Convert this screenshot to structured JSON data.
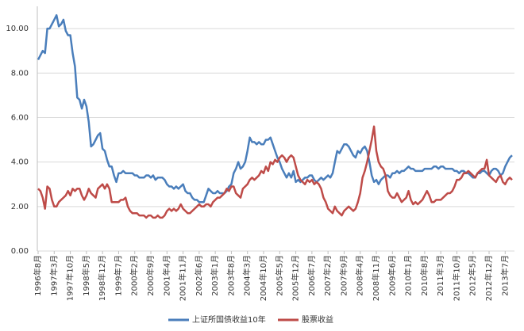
{
  "chart_data": {
    "type": "line",
    "categories": [
      "1996年8月",
      null,
      null,
      null,
      null,
      null,
      null,
      "1997年3月",
      null,
      null,
      null,
      null,
      null,
      null,
      "1997年10月",
      null,
      null,
      null,
      null,
      null,
      null,
      "1998年5月",
      null,
      null,
      null,
      null,
      null,
      null,
      "1998年12月",
      null,
      null,
      null,
      null,
      null,
      null,
      "1999年7月",
      null,
      null,
      null,
      null,
      null,
      null,
      "2000年2月",
      null,
      null,
      null,
      null,
      null,
      null,
      "2000年9月",
      null,
      null,
      null,
      null,
      null,
      null,
      "2001年4月",
      null,
      null,
      null,
      null,
      null,
      null,
      "2001年11月",
      null,
      null,
      null,
      null,
      null,
      null,
      "2002年6月",
      null,
      null,
      null,
      null,
      null,
      null,
      "2003年1月",
      null,
      null,
      null,
      null,
      null,
      null,
      "2003年8月",
      null,
      null,
      null,
      null,
      null,
      null,
      "2004年3月",
      null,
      null,
      null,
      null,
      null,
      null,
      "2004年10月",
      null,
      null,
      null,
      null,
      null,
      null,
      "2005年5月",
      null,
      null,
      null,
      null,
      null,
      null,
      "2005年12月",
      null,
      null,
      null,
      null,
      null,
      null,
      "2006年7月",
      null,
      null,
      null,
      null,
      null,
      null,
      "2007年2月",
      null,
      null,
      null,
      null,
      null,
      null,
      "2007年9月",
      null,
      null,
      null,
      null,
      null,
      null,
      "2008年4月",
      null,
      null,
      null,
      null,
      null,
      null,
      "2008年11月",
      null,
      null,
      null,
      null,
      null,
      null,
      "2009年6月",
      null,
      null,
      null,
      null,
      null,
      null,
      "2010年1月",
      null,
      null,
      null,
      null,
      null,
      null,
      "2010年8月",
      null,
      null,
      null,
      null,
      null,
      null,
      "2011年3月",
      null,
      null,
      null,
      null,
      null,
      null,
      "2011年10月",
      null,
      null,
      null,
      null,
      null,
      null,
      "2012年5月",
      null,
      null,
      null,
      null,
      null,
      null,
      "2012年12月",
      null,
      null,
      null,
      null,
      null,
      null,
      "2013年7月",
      null,
      null,
      null
    ],
    "series": [
      {
        "name": "上证所国债收益10年",
        "color": "#4a7ebb",
        "values": [
          8.6,
          8.8,
          9.0,
          8.9,
          10.0,
          10.0,
          10.2,
          10.4,
          10.6,
          10.1,
          10.2,
          10.4,
          9.9,
          9.7,
          9.7,
          8.9,
          8.3,
          6.9,
          6.8,
          6.4,
          6.8,
          6.5,
          5.8,
          4.7,
          4.8,
          5.0,
          5.2,
          5.3,
          4.6,
          4.5,
          4.1,
          3.8,
          3.8,
          3.4,
          3.1,
          3.5,
          3.5,
          3.6,
          3.5,
          3.5,
          3.5,
          3.5,
          3.4,
          3.4,
          3.3,
          3.3,
          3.3,
          3.4,
          3.4,
          3.3,
          3.4,
          3.2,
          3.3,
          3.3,
          3.3,
          3.2,
          3.0,
          2.9,
          2.9,
          2.8,
          2.9,
          2.8,
          2.9,
          3.0,
          2.7,
          2.6,
          2.6,
          2.4,
          2.3,
          2.3,
          2.2,
          2.2,
          2.2,
          2.5,
          2.8,
          2.7,
          2.6,
          2.6,
          2.7,
          2.6,
          2.6,
          2.6,
          2.7,
          2.9,
          3.0,
          3.5,
          3.7,
          4.0,
          3.7,
          3.8,
          4.0,
          4.5,
          5.1,
          4.9,
          4.9,
          4.8,
          4.9,
          4.8,
          4.8,
          5.0,
          5.0,
          5.1,
          4.8,
          4.5,
          4.2,
          4.0,
          3.7,
          3.5,
          3.3,
          3.5,
          3.3,
          3.6,
          3.1,
          3.2,
          3.1,
          3.2,
          3.3,
          3.3,
          3.4,
          3.4,
          3.2,
          3.1,
          3.2,
          3.3,
          3.2,
          3.3,
          3.4,
          3.3,
          3.5,
          4.0,
          4.5,
          4.4,
          4.6,
          4.8,
          4.8,
          4.7,
          4.5,
          4.3,
          4.2,
          4.5,
          4.4,
          4.6,
          4.7,
          4.5,
          4.0,
          3.4,
          3.1,
          3.2,
          3.0,
          3.2,
          3.3,
          3.4,
          3.4,
          3.3,
          3.5,
          3.5,
          3.6,
          3.5,
          3.6,
          3.6,
          3.7,
          3.8,
          3.7,
          3.7,
          3.6,
          3.6,
          3.6,
          3.6,
          3.7,
          3.7,
          3.7,
          3.7,
          3.8,
          3.8,
          3.7,
          3.8,
          3.8,
          3.7,
          3.7,
          3.7,
          3.7,
          3.6,
          3.6,
          3.5,
          3.6,
          3.6,
          3.5,
          3.5,
          3.4,
          3.3,
          3.3,
          3.5,
          3.5,
          3.6,
          3.6,
          3.5,
          3.4,
          3.6,
          3.7,
          3.7,
          3.6,
          3.4,
          3.5,
          3.8,
          4.0,
          4.2,
          4.3
        ]
      },
      {
        "name": "股票收益",
        "color": "#be4b48",
        "values": [
          2.8,
          2.7,
          2.4,
          1.9,
          2.9,
          2.8,
          2.3,
          2.0,
          2.0,
          2.2,
          2.3,
          2.4,
          2.5,
          2.7,
          2.5,
          2.8,
          2.7,
          2.8,
          2.8,
          2.5,
          2.3,
          2.5,
          2.8,
          2.6,
          2.5,
          2.4,
          2.8,
          2.9,
          3.0,
          2.8,
          3.0,
          2.8,
          2.2,
          2.2,
          2.2,
          2.2,
          2.3,
          2.3,
          2.4,
          2.0,
          1.8,
          1.7,
          1.7,
          1.7,
          1.6,
          1.6,
          1.6,
          1.5,
          1.6,
          1.6,
          1.5,
          1.5,
          1.6,
          1.5,
          1.5,
          1.6,
          1.8,
          1.9,
          1.8,
          1.9,
          1.8,
          1.9,
          2.1,
          1.9,
          1.8,
          1.7,
          1.7,
          1.8,
          1.9,
          2.0,
          2.1,
          2.0,
          2.0,
          2.1,
          2.1,
          2.0,
          2.2,
          2.3,
          2.4,
          2.4,
          2.5,
          2.6,
          2.8,
          2.7,
          2.9,
          2.9,
          2.6,
          2.5,
          2.4,
          2.8,
          2.9,
          3.0,
          3.2,
          3.3,
          3.2,
          3.3,
          3.4,
          3.6,
          3.5,
          3.8,
          3.6,
          4.0,
          3.9,
          4.1,
          4.0,
          4.2,
          4.3,
          4.2,
          4.0,
          4.2,
          4.3,
          4.2,
          3.8,
          3.4,
          3.2,
          3.1,
          3.0,
          3.2,
          3.1,
          3.2,
          3.0,
          3.1,
          3.0,
          2.8,
          2.4,
          2.2,
          1.9,
          1.8,
          1.7,
          2.0,
          1.8,
          1.7,
          1.6,
          1.8,
          1.9,
          2.0,
          1.9,
          1.8,
          1.9,
          2.2,
          2.6,
          3.3,
          3.6,
          4.0,
          4.5,
          5.0,
          5.6,
          4.5,
          4.0,
          3.8,
          3.7,
          3.4,
          2.7,
          2.5,
          2.4,
          2.4,
          2.6,
          2.4,
          2.2,
          2.3,
          2.4,
          2.7,
          2.3,
          2.1,
          2.2,
          2.1,
          2.2,
          2.3,
          2.5,
          2.7,
          2.5,
          2.2,
          2.2,
          2.3,
          2.3,
          2.3,
          2.4,
          2.5,
          2.6,
          2.6,
          2.7,
          2.9,
          3.2,
          3.2,
          3.3,
          3.5,
          3.5,
          3.6,
          3.5,
          3.4,
          3.3,
          3.5,
          3.6,
          3.7,
          3.7,
          4.1,
          3.4,
          3.3,
          3.2,
          3.1,
          3.3,
          3.4,
          3.1,
          3.0,
          3.2,
          3.3,
          3.2
        ]
      }
    ],
    "ylim": [
      0,
      11
    ],
    "yticks": [
      {
        "value": 0,
        "label": "0.00"
      },
      {
        "value": 2,
        "label": "2.00"
      },
      {
        "value": 4,
        "label": "4.00"
      },
      {
        "value": 6,
        "label": "6.00"
      },
      {
        "value": 8,
        "label": "8.00"
      },
      {
        "value": 10,
        "label": "10.00"
      }
    ],
    "grid": true,
    "legend": "bottom"
  }
}
